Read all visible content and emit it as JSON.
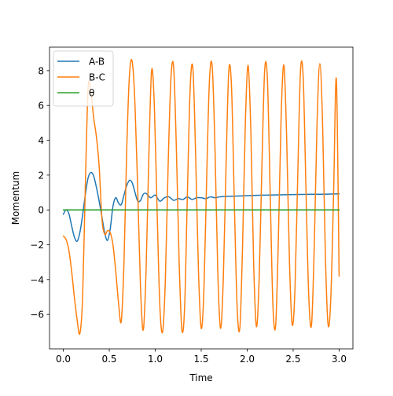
{
  "chart_data": {
    "type": "line",
    "xlabel": "Time",
    "ylabel": "Momentum",
    "xlim": [
      -0.15,
      3.15
    ],
    "ylim": [
      -7.98,
      9.35
    ],
    "xticks": [
      0.0,
      0.5,
      1.0,
      1.5,
      2.0,
      2.5,
      3.0
    ],
    "xtick_labels": [
      "0.0",
      "0.5",
      "1.0",
      "1.5",
      "2.0",
      "2.5",
      "3.0"
    ],
    "yticks": [
      -6,
      -4,
      -2,
      0,
      2,
      4,
      6,
      8
    ],
    "ytick_labels": [
      "−6",
      "−4",
      "−2",
      "0",
      "2",
      "4",
      "6",
      "8"
    ],
    "grid": false,
    "legend_position": "upper-left",
    "series": [
      {
        "name": "A-B",
        "color": "#1f77b4",
        "x": [
          0.0,
          0.03,
          0.06,
          0.09,
          0.12,
          0.15,
          0.18,
          0.21,
          0.24,
          0.27,
          0.3,
          0.33,
          0.36,
          0.39,
          0.42,
          0.45,
          0.48,
          0.51,
          0.54,
          0.57,
          0.6,
          0.63,
          0.66,
          0.69,
          0.72,
          0.75,
          0.78,
          0.81,
          0.84,
          0.87,
          0.9,
          0.95,
          1.0,
          1.05,
          1.1,
          1.15,
          1.2,
          1.25,
          1.3,
          1.35,
          1.4,
          1.45,
          1.5,
          1.55,
          1.6,
          1.65,
          1.7,
          1.8,
          1.9,
          2.0,
          2.1,
          2.2,
          2.3,
          2.4,
          2.5,
          2.6,
          2.7,
          2.8,
          2.9,
          3.0
        ],
        "values": [
          -0.25,
          0.0,
          -0.2,
          -0.9,
          -1.55,
          -1.8,
          -1.3,
          -0.3,
          0.9,
          1.85,
          2.15,
          1.95,
          1.3,
          0.5,
          -0.4,
          -1.3,
          -1.75,
          -1.1,
          0.2,
          0.7,
          0.4,
          0.3,
          0.85,
          1.4,
          1.7,
          1.55,
          1.0,
          0.5,
          0.55,
          0.9,
          0.95,
          0.7,
          0.85,
          0.5,
          0.7,
          0.75,
          0.55,
          0.65,
          0.6,
          0.75,
          0.6,
          0.7,
          0.7,
          0.65,
          0.75,
          0.7,
          0.75,
          0.78,
          0.8,
          0.82,
          0.84,
          0.85,
          0.86,
          0.87,
          0.88,
          0.89,
          0.9,
          0.9,
          0.91,
          0.92
        ]
      },
      {
        "name": "B-C",
        "color": "#ff7f0e",
        "x": [
          0.0,
          0.03,
          0.06,
          0.09,
          0.12,
          0.15,
          0.18,
          0.21,
          0.24,
          0.27,
          0.3,
          0.33,
          0.36,
          0.39,
          0.42,
          0.45,
          0.48,
          0.51,
          0.54,
          0.57,
          0.6,
          0.63,
          0.66,
          0.69,
          0.72,
          0.75,
          0.78,
          0.81,
          0.84,
          0.87,
          0.9,
          0.93,
          0.96,
          0.99,
          1.02,
          1.05,
          1.08,
          1.11,
          1.14,
          1.17,
          1.2,
          1.23,
          1.26,
          1.29,
          1.32,
          1.35,
          1.38,
          1.41,
          1.44,
          1.47,
          1.5,
          1.53,
          1.56,
          1.59,
          1.62,
          1.65,
          1.68,
          1.71,
          1.74,
          1.77,
          1.8,
          1.83,
          1.86,
          1.89,
          1.92,
          1.95,
          1.98,
          2.01,
          2.04,
          2.07,
          2.1,
          2.13,
          2.16,
          2.19,
          2.22,
          2.25,
          2.28,
          2.31,
          2.34,
          2.37,
          2.4,
          2.43,
          2.46,
          2.49,
          2.52,
          2.55,
          2.58,
          2.61,
          2.64,
          2.67,
          2.7,
          2.73,
          2.76,
          2.79,
          2.82,
          2.85,
          2.88,
          2.91,
          2.94,
          2.97,
          3.0
        ],
        "values": [
          -1.5,
          -1.7,
          -2.3,
          -3.5,
          -5.0,
          -6.3,
          -7.1,
          -5.0,
          1.5,
          7.0,
          6.8,
          5.3,
          4.2,
          2.5,
          -0.5,
          -1.4,
          -1.2,
          -1.3,
          -2.0,
          -3.5,
          -5.3,
          -6.4,
          -3.0,
          3.5,
          7.8,
          8.5,
          6.0,
          1.0,
          -4.5,
          -6.9,
          -3.5,
          3.0,
          8.0,
          6.0,
          0.0,
          -5.5,
          -7.0,
          -4.0,
          2.5,
          7.5,
          8.2,
          3.5,
          -3.0,
          -6.9,
          -5.5,
          1.0,
          7.0,
          8.1,
          3.0,
          -3.5,
          -6.8,
          -4.5,
          2.0,
          7.5,
          8.2,
          3.5,
          -3.5,
          -6.8,
          -4.0,
          2.5,
          8.0,
          7.0,
          0.5,
          -5.5,
          -6.8,
          -2.0,
          5.0,
          8.3,
          4.5,
          -3.0,
          -6.7,
          -4.0,
          2.5,
          8.0,
          7.5,
          1.0,
          -5.5,
          -6.6,
          -1.5,
          5.5,
          8.3,
          4.0,
          -3.0,
          -6.6,
          -4.5,
          2.0,
          8.0,
          7.5,
          1.0,
          -5.0,
          -6.6,
          -2.0,
          5.0,
          8.4,
          5.0,
          -2.5,
          -6.6,
          -5.0,
          1.0,
          7.5,
          -3.8
        ]
      },
      {
        "name": "θ",
        "color": "#2ca02c",
        "x": [
          0.0,
          3.0
        ],
        "values": [
          0.0,
          0.0
        ]
      }
    ]
  }
}
